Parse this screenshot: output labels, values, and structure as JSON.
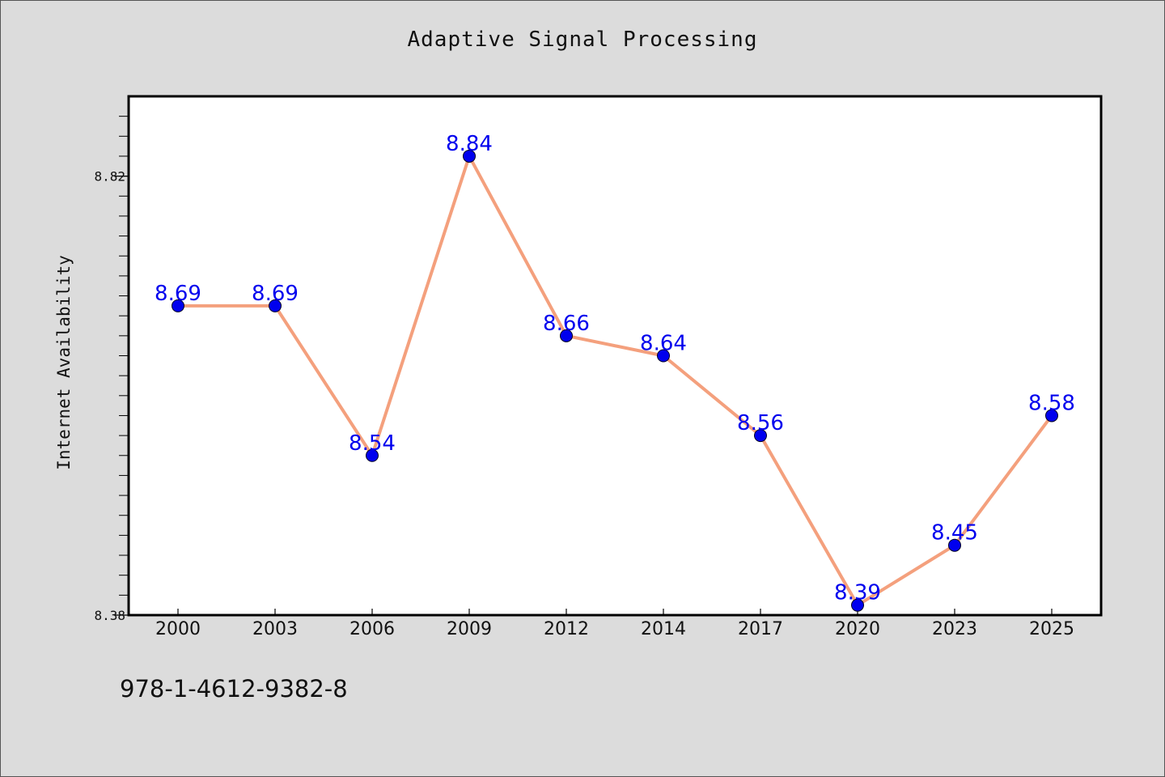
{
  "chart_data": {
    "type": "line",
    "title": "Adaptive Signal Processing",
    "xlabel": "",
    "ylabel": "Internet Availability",
    "categories": [
      "2000",
      "2003",
      "2006",
      "2009",
      "2012",
      "2014",
      "2017",
      "2020",
      "2023",
      "2025"
    ],
    "series": [
      {
        "values": [
          8.69,
          8.69,
          8.54,
          8.84,
          8.66,
          8.64,
          8.56,
          8.39,
          8.45,
          8.58
        ],
        "data_labels": [
          "8.69",
          "8.69",
          "8.54",
          "8.84",
          "8.66",
          "8.64",
          "8.56",
          "8.39",
          "8.45",
          "8.58"
        ]
      }
    ],
    "ylim": [
      8.38,
      8.9
    ],
    "yticks": [
      8.38,
      8.82
    ],
    "ytick_labels": [
      "8.38",
      "8.82"
    ],
    "grid": false,
    "legend": "none",
    "colors": {
      "line": "#f4a07d",
      "marker": "#0000ee",
      "data_label": "#0000ee",
      "background": "#dcdcdc",
      "plot_area": "#ffffff"
    }
  },
  "footer": {
    "code": "978-1-4612-9382-8"
  }
}
